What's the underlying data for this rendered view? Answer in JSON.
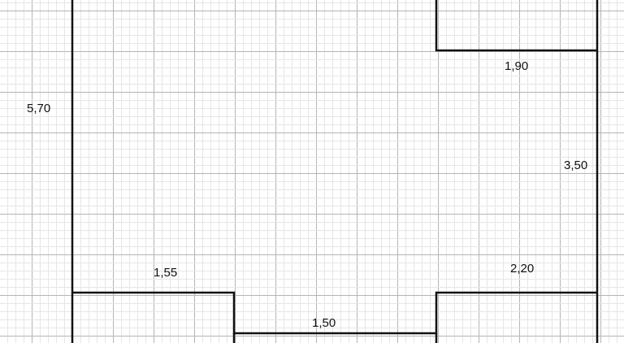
{
  "plan": {
    "labels": {
      "left_height": "5,70",
      "top_right_width": "1,90",
      "right_height": "3,50",
      "bottom_left_width": "1,55",
      "bottom_right_width": "2,20",
      "bottom_middle_width": "1,50"
    },
    "colors": {
      "wall": "#111111",
      "grid_major": "#b5b5b5",
      "grid_minor": "#e6e6e6"
    }
  }
}
